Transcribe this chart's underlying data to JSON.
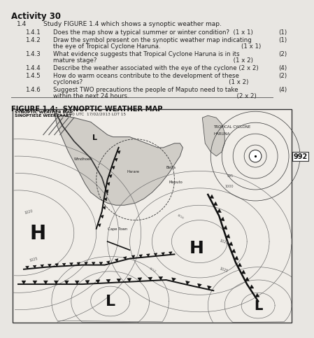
{
  "title": "Activity 30",
  "bg_color": "#e8e6e2",
  "section_header": "1.4",
  "section_intro": "Study FIGURE 1.4 which shows a synoptic weather map.",
  "questions": [
    {
      "num": "1.4.1",
      "text": "Does the map show a typical summer or winter condition?  (1 x 1)",
      "marks": "(1)"
    },
    {
      "num": "1.4.2",
      "text": "Draw the symbol present on the synoptic weather map indicating",
      "text2": "the eye of Tropical Cyclone Haruna.                                          (1 x 1)",
      "marks": "(1)"
    },
    {
      "num": "1.4.3",
      "text": "What evidence suggests that Tropical Cyclone Haruna is in its",
      "text2": "mature stage?                                                                       (1 x 2)",
      "marks": "(2)"
    },
    {
      "num": "1.4.4",
      "text": "Describe the weather associated with the eye of the cyclone (2 x 2)",
      "marks": "(4)"
    },
    {
      "num": "1.4.5",
      "text": "How do warm oceans contribute to the development of these",
      "text2": "cyclones?                                                                            (1 x 2)",
      "marks": "(2)"
    },
    {
      "num": "1.4.6",
      "text": "Suggest TWO precautions the people of Maputo need to take",
      "text2": "within the next 24 hours.                                                        (2 x 2)",
      "marks": "(4)"
    }
  ],
  "figure_title": "FIGURE 1.4:  SYNOPTIC WEATHER MAP",
  "map_header_left1": "SYNOPTIC WEATHER MAP",
  "map_header_left2": "SINOPTIESE WEERKAART",
  "map_header_right": "13:00 UTC  17/02/2013 LDT 15",
  "label_992": "992",
  "label_tropical_line1": "TROPICAL CYCLONE",
  "label_tropical_line2": "HARUNA",
  "label_H_left": "H",
  "label_H_right": "H",
  "label_L_bottom_left": "L",
  "label_L_bottom_right": "L",
  "label_cape_town": "Cape Town",
  "label_harare": "Harare",
  "label_maputo": "Maputo",
  "label_beira": "Beira",
  "label_windhoek": "Windhoek"
}
